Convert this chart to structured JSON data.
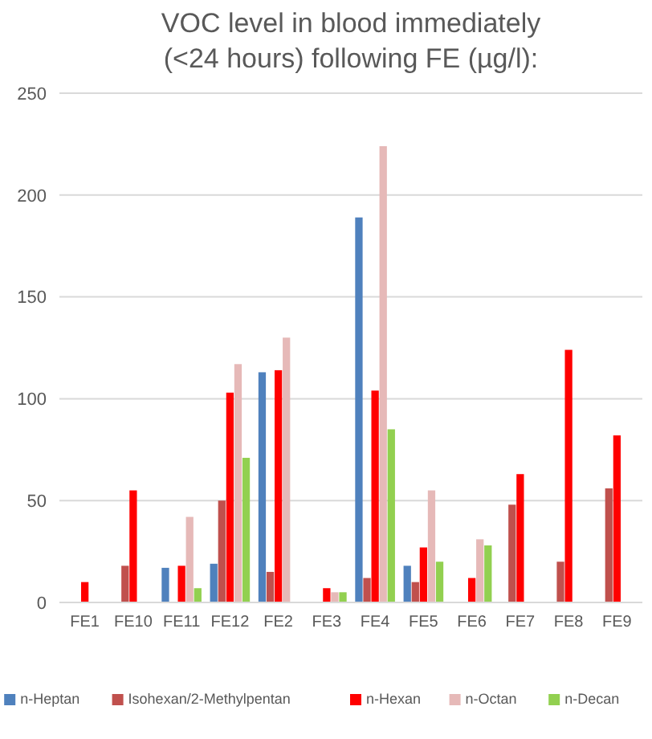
{
  "chart_data": {
    "type": "bar",
    "title": "VOC level in blood immediately (<24 hours) following FE (µg/l):",
    "categories": [
      "FE1",
      "FE10",
      "FE11",
      "FE12",
      "FE2",
      "FE3",
      "FE4",
      "FE5",
      "FE6",
      "FE7",
      "FE8",
      "FE9"
    ],
    "series": [
      {
        "name": "n-Heptan",
        "color": "#4f81bd",
        "values": [
          null,
          null,
          17,
          19,
          113,
          null,
          189,
          18,
          null,
          null,
          null,
          null
        ]
      },
      {
        "name": "Isohexan/2-Methylpentan",
        "color": "#c0504d",
        "values": [
          null,
          18,
          null,
          50,
          15,
          null,
          12,
          10,
          null,
          48,
          20,
          56
        ]
      },
      {
        "name": "n-Hexan",
        "color": "#ff0000",
        "values": [
          10,
          55,
          18,
          103,
          114,
          7,
          104,
          27,
          12,
          63,
          124,
          82
        ]
      },
      {
        "name": "n-Octan",
        "color": "#e6b9b8",
        "values": [
          null,
          null,
          42,
          117,
          130,
          5,
          224,
          55,
          31,
          null,
          null,
          null
        ]
      },
      {
        "name": "n-Decan",
        "color": "#92d050",
        "values": [
          null,
          null,
          7,
          71,
          null,
          5,
          85,
          20,
          28,
          null,
          null,
          null
        ]
      }
    ],
    "ylim": [
      0,
      250
    ],
    "yticks": [
      0,
      50,
      100,
      150,
      200,
      250
    ],
    "grid": "y",
    "legend": "bottom"
  }
}
